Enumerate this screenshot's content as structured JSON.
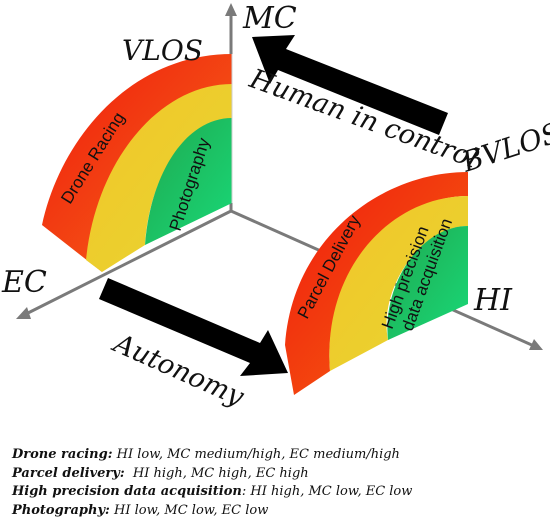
{
  "axes": {
    "mc": "MC",
    "ec": "EC",
    "hi": "HI"
  },
  "regions": {
    "vlos": "VLOS",
    "bvlos": "BVLOS"
  },
  "arrows": {
    "human_in_control": "Human in control",
    "autonomy": "Autonomy"
  },
  "band_labels": {
    "drone_racing": "Drone Racing",
    "photography": "Photography",
    "parcel_delivery": "Parcel Delivery",
    "hpda_line1": "High precision",
    "hpda_line2": "data acquisition"
  },
  "colors": {
    "red": "#f11b0c",
    "orange": "#f5871c",
    "yellow": "#ecd12e",
    "green": "#17c96a",
    "axis": "#7a7a7a",
    "arrow": "#000000"
  },
  "legend": [
    {
      "key": "Drone racing:",
      "text": " HI low, MC medium/high, EC medium/high"
    },
    {
      "key": "Parcel delivery:",
      "text": "  HI high, MC high, EC high"
    },
    {
      "key": "High precision data acquisition",
      "text": ": HI high, MC low, EC low"
    },
    {
      "key": "Photography:",
      "text": " HI low, MC low, EC low"
    }
  ]
}
